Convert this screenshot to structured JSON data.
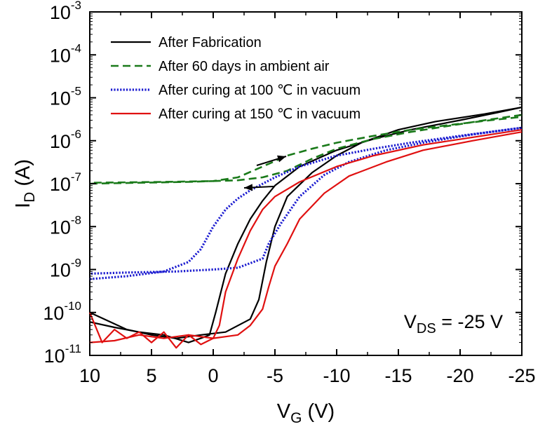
{
  "chart_data": {
    "type": "line",
    "title": "",
    "xlabel": {
      "main": "V",
      "sub": "G",
      "unit": " (V)"
    },
    "ylabel": {
      "main": "I",
      "sub": "D",
      "unit": " (A)"
    },
    "x_axis": {
      "reversed": true,
      "xlim": [
        10,
        -25
      ],
      "ticks": [
        10,
        5,
        0,
        -5,
        -10,
        -15,
        -20,
        -25
      ],
      "tick_labels": [
        "10",
        "5",
        "0",
        "-5",
        "-10",
        "-15",
        "-20",
        "-25"
      ]
    },
    "y_axis": {
      "scale": "log",
      "ylim": [
        1e-11,
        0.001
      ],
      "ticks": [
        -11,
        -10,
        -9,
        -8,
        -7,
        -6,
        -5,
        -4,
        -3
      ],
      "tick_base": "10",
      "tick_exponents": [
        "-11",
        "-10",
        "-9",
        "-8",
        "-7",
        "-6",
        "-5",
        "-4",
        "-3"
      ]
    },
    "grid": false,
    "legend_position": "top-left",
    "annotation": {
      "main": "V",
      "sub": "DS",
      "rest": " = -25 V"
    },
    "series": [
      {
        "name": "After Fabrication",
        "color": "#000000",
        "style": "solid",
        "forward": [
          [
            10,
            6e-11
          ],
          [
            8,
            4.5e-11
          ],
          [
            6,
            3.5e-11
          ],
          [
            4,
            3e-11
          ],
          [
            2,
            2e-11
          ],
          [
            1,
            2.5e-11
          ],
          [
            0.3,
            3e-11
          ],
          [
            -0.2,
            1e-10
          ],
          [
            -1,
            8e-10
          ],
          [
            -2,
            4e-09
          ],
          [
            -3,
            1.5e-08
          ],
          [
            -4,
            4e-08
          ],
          [
            -5,
            9e-08
          ],
          [
            -7,
            2.5e-07
          ],
          [
            -10,
            6e-07
          ],
          [
            -13,
            1.1e-06
          ],
          [
            -16,
            1.8e-06
          ],
          [
            -20,
            3e-06
          ],
          [
            -23,
            4.5e-06
          ],
          [
            -25,
            6e-06
          ]
        ],
        "reverse": [
          [
            -25,
            6e-06
          ],
          [
            -22,
            4.2e-06
          ],
          [
            -18,
            2.8e-06
          ],
          [
            -15,
            1.8e-06
          ],
          [
            -12,
            9e-07
          ],
          [
            -10,
            4.5e-07
          ],
          [
            -8,
            1.8e-07
          ],
          [
            -6,
            5e-08
          ],
          [
            -5,
            1e-08
          ],
          [
            -4.3,
            1.5e-09
          ],
          [
            -3.7,
            2e-10
          ],
          [
            -3,
            7e-11
          ],
          [
            -1,
            3.5e-11
          ],
          [
            1,
            3e-11
          ],
          [
            3,
            2.5e-11
          ],
          [
            5,
            3e-11
          ],
          [
            7,
            4e-11
          ],
          [
            10,
            1e-10
          ]
        ]
      },
      {
        "name": "After 60 days in ambient air",
        "color": "#1a7a1a",
        "style": "dashed",
        "forward": [
          [
            10,
            1e-07
          ],
          [
            6,
            1.05e-07
          ],
          [
            2,
            1.1e-07
          ],
          [
            0,
            1.15e-07
          ],
          [
            -2,
            1.4e-07
          ],
          [
            -4,
            2.5e-07
          ],
          [
            -6,
            4.5e-07
          ],
          [
            -8,
            6.5e-07
          ],
          [
            -10,
            9e-07
          ],
          [
            -13,
            1.3e-06
          ],
          [
            -16,
            1.8e-06
          ],
          [
            -19,
            2.3e-06
          ],
          [
            -22,
            2.9e-06
          ],
          [
            -25,
            3.6e-06
          ]
        ],
        "reverse": [
          [
            -25,
            4e-06
          ],
          [
            -22,
            3e-06
          ],
          [
            -19,
            2.2e-06
          ],
          [
            -16,
            1.6e-06
          ],
          [
            -13,
            1.1e-06
          ],
          [
            -10,
            6.5e-07
          ],
          [
            -8,
            3.8e-07
          ],
          [
            -6,
            2e-07
          ],
          [
            -4,
            1.4e-07
          ],
          [
            -2,
            1.2e-07
          ],
          [
            0,
            1.15e-07
          ],
          [
            4,
            1.1e-07
          ],
          [
            10,
            1.05e-07
          ]
        ]
      },
      {
        "name": "After curing at 100 ℃ in vacuum",
        "color": "#1c1cd0",
        "style": "dotted",
        "forward": [
          [
            10,
            6e-10
          ],
          [
            7,
            7e-10
          ],
          [
            4,
            9e-10
          ],
          [
            2,
            1.5e-09
          ],
          [
            1,
            3e-09
          ],
          [
            0,
            1e-08
          ],
          [
            -1,
            2.5e-08
          ],
          [
            -2,
            4.5e-08
          ],
          [
            -3,
            7e-08
          ],
          [
            -5,
            1.4e-07
          ],
          [
            -7,
            2.5e-07
          ],
          [
            -10,
            4.5e-07
          ],
          [
            -13,
            6.5e-07
          ],
          [
            -16,
            9e-07
          ],
          [
            -20,
            1.3e-06
          ],
          [
            -25,
            2e-06
          ]
        ],
        "reverse": [
          [
            -25,
            2e-06
          ],
          [
            -21,
            1.4e-06
          ],
          [
            -17,
            9e-07
          ],
          [
            -14,
            6e-07
          ],
          [
            -11,
            3.2e-07
          ],
          [
            -9,
            1.6e-07
          ],
          [
            -7,
            5e-08
          ],
          [
            -5.5,
            1.2e-08
          ],
          [
            -4.5,
            4e-09
          ],
          [
            -4,
            1.8e-09
          ],
          [
            -2,
            1.1e-09
          ],
          [
            0,
            1e-09
          ],
          [
            3,
            9e-10
          ],
          [
            7,
            8.5e-10
          ],
          [
            10,
            8e-10
          ]
        ]
      },
      {
        "name": "After curing at 150 ℃ in vacuum",
        "color": "#e01010",
        "style": "solid",
        "forward": [
          [
            10,
            1e-10
          ],
          [
            9,
            2e-11
          ],
          [
            8,
            4e-11
          ],
          [
            7,
            2.5e-11
          ],
          [
            6,
            3.5e-11
          ],
          [
            5,
            2e-11
          ],
          [
            4,
            3.5e-11
          ],
          [
            3,
            1.5e-11
          ],
          [
            2,
            3e-11
          ],
          [
            1,
            1.8e-11
          ],
          [
            0,
            2.5e-11
          ],
          [
            -0.5,
            5e-11
          ],
          [
            -1,
            3e-10
          ],
          [
            -2,
            1.8e-09
          ],
          [
            -3,
            8e-09
          ],
          [
            -4,
            2.5e-08
          ],
          [
            -5,
            5e-08
          ],
          [
            -7,
            1.1e-07
          ],
          [
            -10,
            2.5e-07
          ],
          [
            -13,
            4.5e-07
          ],
          [
            -17,
            8e-07
          ],
          [
            -21,
            1.2e-06
          ],
          [
            -25,
            1.8e-06
          ]
        ],
        "reverse": [
          [
            -25,
            1.6e-06
          ],
          [
            -21,
            1e-06
          ],
          [
            -17,
            6e-07
          ],
          [
            -14,
            3.2e-07
          ],
          [
            -11,
            1.5e-07
          ],
          [
            -9,
            6e-08
          ],
          [
            -7,
            1.5e-08
          ],
          [
            -6,
            4e-09
          ],
          [
            -5,
            1.2e-09
          ],
          [
            -4.5,
            4e-10
          ],
          [
            -4,
            1.2e-10
          ],
          [
            -3,
            5e-11
          ],
          [
            -2,
            3e-11
          ],
          [
            0,
            2.5e-11
          ],
          [
            2,
            3e-11
          ],
          [
            4,
            2.5e-11
          ],
          [
            6,
            3e-11
          ],
          [
            8,
            2.2e-11
          ],
          [
            10,
            2e-11
          ]
        ]
      }
    ]
  }
}
